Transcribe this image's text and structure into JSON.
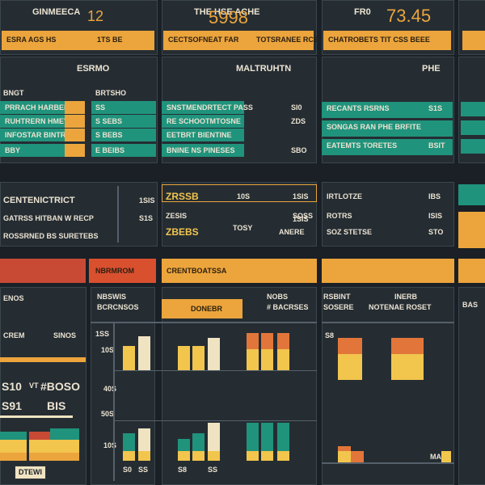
{
  "top": [
    {
      "title": "GINMEECA",
      "value": 12,
      "bar": "ESRA AGS HS",
      "bar_right": "1TS BE"
    },
    {
      "title": "THE HSE ACHE",
      "value": 5998,
      "bar": "CECTSOFNEAT FAR",
      "bar_right": "TOTSRANEE RCS"
    },
    {
      "title": "FR0",
      "value": 73.45,
      "bar": "CHATROBETS TIT CSS BEEE"
    }
  ],
  "tables": [
    {
      "header": "ESRMO",
      "label": "BNGT",
      "sub": "BRTSHO",
      "rows": [
        [
          "PRRACH HARBEN VA",
          "SS"
        ],
        [
          "RUHTRERN HMEVRE",
          "S SEBS"
        ],
        [
          "INFOSTAR BINTRAS",
          "S BEBS"
        ],
        [
          "BBY",
          "E BEIBS"
        ]
      ]
    },
    {
      "header": "MALTRUHTN",
      "rows": [
        [
          "SNSTMENDRTECT PASS",
          "SI0"
        ],
        [
          "RE SCHOOTMTOSNE",
          "ZDS"
        ],
        [
          "EETBRT BIENTINE"
        ],
        [
          "BNINE NS PINESES",
          "SBO"
        ]
      ]
    },
    {
      "header": "PHE",
      "rows": [
        [
          "RECANTS RSRNS",
          "S1S"
        ],
        [
          "SONGAS RAN PHE BRFITE"
        ],
        [
          "EATEMTS TORETES",
          "BSIT"
        ]
      ]
    }
  ],
  "mid": [
    {
      "title": "CENTENICTRICT",
      "lines": [
        "GATRSS HITBAN W RECP",
        "ROSSRNED BS SURETEBS"
      ],
      "values": [
        "1SIS",
        "S1S"
      ]
    },
    {
      "cells": [
        "ZRSSB",
        "10S",
        "1SIS",
        "ZESIS",
        "SOSS",
        "ZBEBS",
        "TOSY",
        "ANERE",
        "1SIS"
      ]
    },
    {
      "cells": [
        "IRTLOTZE",
        "IBS",
        "ROTRS",
        "ISIS",
        "SOZ STETSE",
        "STO"
      ]
    }
  ],
  "bands": [
    "NBRMROM",
    "CRENTBOATSSA"
  ],
  "bottom": {
    "a": {
      "title": "ENOS",
      "labels": [
        "CREM",
        "SINOS"
      ],
      "stat": [
        "S10",
        "VT",
        "#BOSO"
      ],
      "stat2": [
        "S91",
        "BIS"
      ],
      "button": "DTEWI",
      "bars": [
        {
          "values": [
            10,
            16,
            10
          ],
          "colors": [
            "#eca53c",
            "#f2c54d",
            "#20937c"
          ]
        },
        {
          "values": [
            10,
            16,
            10
          ],
          "colors": [
            "#eca53c",
            "#f2c54d",
            "#c84a35"
          ]
        },
        {
          "values": [
            10,
            16,
            14
          ],
          "colors": [
            "#eca53c",
            "#f2c54d",
            "#20937c"
          ]
        }
      ]
    },
    "b": {
      "titles": [
        "NBSWIS",
        "BCRCNSOS"
      ],
      "tag": "DONEBR",
      "notes": [
        "NOBS",
        "# BACRSES"
      ],
      "axis": [
        "1SS",
        "10S",
        "40S",
        "50S",
        "10S"
      ],
      "upper": [
        {
          "values": [
            30
          ],
          "colors": [
            "#f2c54d"
          ]
        },
        {
          "values": [
            42
          ],
          "colors": [
            "#efe3c2"
          ]
        },
        {
          "values": [
            30
          ],
          "colors": [
            "#f2c54d"
          ]
        },
        {
          "values": [
            30
          ],
          "colors": [
            "#f2c54d"
          ]
        },
        {
          "values": [
            40
          ],
          "colors": [
            "#efe3c2"
          ]
        },
        {
          "values": [
            26,
            20
          ],
          "colors": [
            "#f2c54d",
            "#e2763a"
          ]
        },
        {
          "values": [
            26,
            20
          ],
          "colors": [
            "#f2c54d",
            "#e2763a"
          ]
        },
        {
          "values": [
            26,
            20
          ],
          "colors": [
            "#f2c54d",
            "#e2763a"
          ]
        }
      ],
      "lower": [
        {
          "values": [
            12,
            22
          ],
          "colors": [
            "#f2c54d",
            "#20937c"
          ]
        },
        {
          "values": [
            12,
            28
          ],
          "colors": [
            "#f2c54d",
            "#efe3c2"
          ]
        },
        {
          "values": [
            12,
            15
          ],
          "colors": [
            "#f2c54d",
            "#20937c"
          ]
        },
        {
          "values": [
            12,
            22
          ],
          "colors": [
            "#f2c54d",
            "#20937c"
          ]
        },
        {
          "values": [
            12,
            35
          ],
          "colors": [
            "#f2c54d",
            "#efe3c2"
          ]
        },
        {
          "values": [
            12,
            35
          ],
          "colors": [
            "#f2c54d",
            "#20937c"
          ]
        },
        {
          "values": [
            12,
            35
          ],
          "colors": [
            "#f2c54d",
            "#20937c"
          ]
        },
        {
          "values": [
            12,
            35
          ],
          "colors": [
            "#f2c54d",
            "#20937c"
          ]
        }
      ],
      "labels": [
        "S0",
        "SS",
        "S8",
        "SS"
      ]
    },
    "c": {
      "titles": [
        "RSBINT",
        "SOSERE"
      ],
      "notes": [
        "INERB",
        "NOTENAE ROSET"
      ],
      "axis": "S8",
      "footer": "MASE",
      "upper": [
        {
          "values": [
            32,
            20
          ],
          "colors": [
            "#f2c54d",
            "#e2763a"
          ]
        },
        {
          "values": [
            32,
            20
          ],
          "colors": [
            "#f2c54d",
            "#e2763a"
          ]
        },
        {
          "values": [
            32,
            20
          ],
          "colors": [
            "#f2c54d",
            "#e2763a"
          ]
        }
      ],
      "lower": [
        {
          "values": [
            14,
            6
          ],
          "colors": [
            "#f2c54d",
            "#e2763a"
          ]
        },
        {
          "values": [
            14
          ],
          "colors": [
            "#e2763a"
          ]
        },
        {
          "values": [
            14
          ],
          "colors": [
            "#f2c54d"
          ]
        }
      ]
    },
    "d": {
      "title": "BAS"
    }
  }
}
